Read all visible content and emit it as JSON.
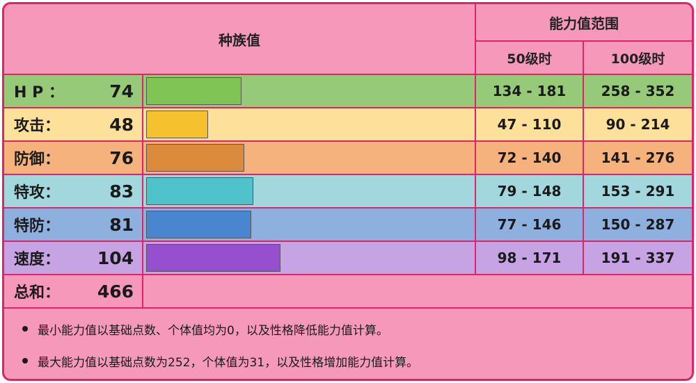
{
  "header": {
    "base_stats": "种族值",
    "range": "能力值范围",
    "lv50": "50级时",
    "lv100": "100级时"
  },
  "stats": [
    {
      "label": "H P ：",
      "value": "74",
      "fraction": 0.2886,
      "lv50": "134 - 181",
      "lv100": "258 - 352",
      "row_color": "#97ca78",
      "bar_color": "#7fc454"
    },
    {
      "label": "攻击：",
      "value": "48",
      "fraction": 0.1875,
      "lv50": "47 - 110",
      "lv100": "90 - 214",
      "row_color": "#fde09a",
      "bar_color": "#f5c12e"
    },
    {
      "label": "防御：",
      "value": "76",
      "fraction": 0.2969,
      "lv50": "72 - 140",
      "lv100": "141 - 276",
      "row_color": "#f6b27c",
      "bar_color": "#dc8a3c"
    },
    {
      "label": "特攻：",
      "value": "83",
      "fraction": 0.3242,
      "lv50": "79 - 148",
      "lv100": "153 - 291",
      "row_color": "#a1d7dd",
      "bar_color": "#4fc2cc"
    },
    {
      "label": "特防：",
      "value": "81",
      "fraction": 0.3164,
      "lv50": "77 - 146",
      "lv100": "150 - 287",
      "row_color": "#8eb0de",
      "bar_color": "#4a86cf"
    },
    {
      "label": "速度：",
      "value": "104",
      "fraction": 0.4063,
      "lv50": "98 - 171",
      "lv100": "191 - 337",
      "row_color": "#c6a3e2",
      "bar_color": "#9650cf"
    }
  ],
  "total": {
    "label": "总和：",
    "value": "466"
  },
  "notes": [
    "最小能力值以基础点数、个体值均为0，以及性格降低能力值计算。",
    "最大能力值以基础点数为252，个体值为31，以及性格增加能力值计算。"
  ],
  "colors": {
    "border": "#e0226b",
    "background": "#f598b9"
  }
}
